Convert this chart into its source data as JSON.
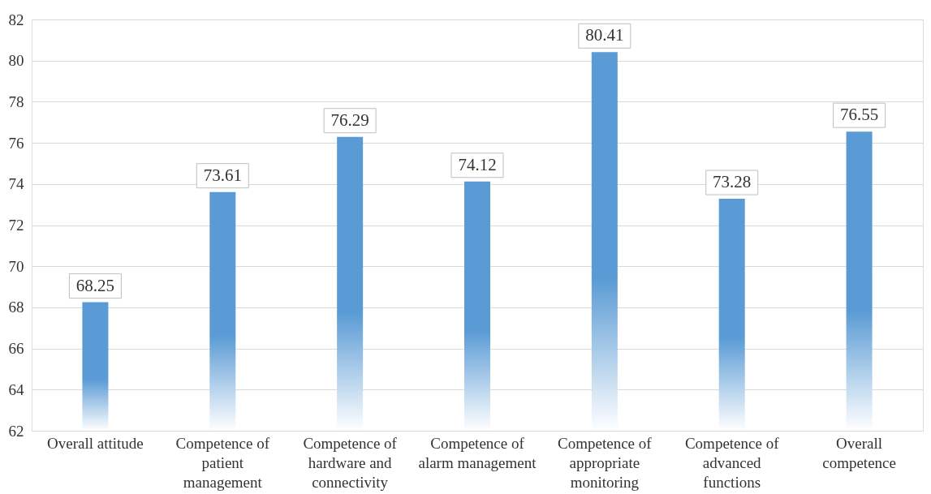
{
  "chart_data": {
    "type": "bar",
    "categories": [
      "Overall attitude",
      "Competence of patient management",
      "Competence of hardware and connectivity",
      "Competence of alarm management",
      "Competence of appropriate monitoring",
      "Competence of advanced functions",
      "Overall competence"
    ],
    "values": [
      68.25,
      73.61,
      76.29,
      74.12,
      80.41,
      73.28,
      76.55
    ],
    "color": "#5b9bd5",
    "ylim": [
      62,
      82
    ],
    "yticks": [
      62,
      64,
      66,
      68,
      70,
      72,
      74,
      76,
      78,
      80,
      82
    ],
    "grid": "y",
    "data_labels": true
  }
}
